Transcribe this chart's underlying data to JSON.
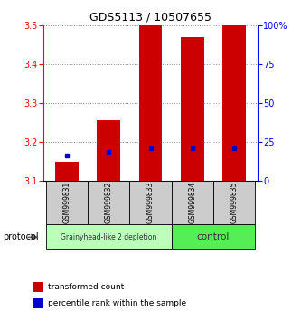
{
  "title": "GDS5113 / 10507655",
  "samples": [
    "GSM999831",
    "GSM999832",
    "GSM999833",
    "GSM999834",
    "GSM999835"
  ],
  "bar_bottom": 3.1,
  "red_bar_tops": [
    3.15,
    3.255,
    3.5,
    3.47,
    3.5
  ],
  "blue_marker_vals": [
    3.165,
    3.175,
    3.185,
    3.185,
    3.185
  ],
  "ylim": [
    3.1,
    3.5
  ],
  "y_ticks": [
    3.1,
    3.2,
    3.3,
    3.4,
    3.5
  ],
  "right_yticks": [
    0,
    25,
    50,
    75,
    100
  ],
  "bar_color": "#cc0000",
  "marker_color": "#0000cc",
  "bar_width": 0.55,
  "grid_color": "#888888",
  "tick_fontsize": 7,
  "title_fontsize": 9,
  "protocol_label": "protocol",
  "legend_labels": [
    "transformed count",
    "percentile rank within the sample"
  ],
  "group1_label": "Grainyhead-like 2 depletion",
  "group2_label": "control",
  "group1_color": "#bbffbb",
  "group2_color": "#55ee55",
  "sample_box_color": "#cccccc"
}
